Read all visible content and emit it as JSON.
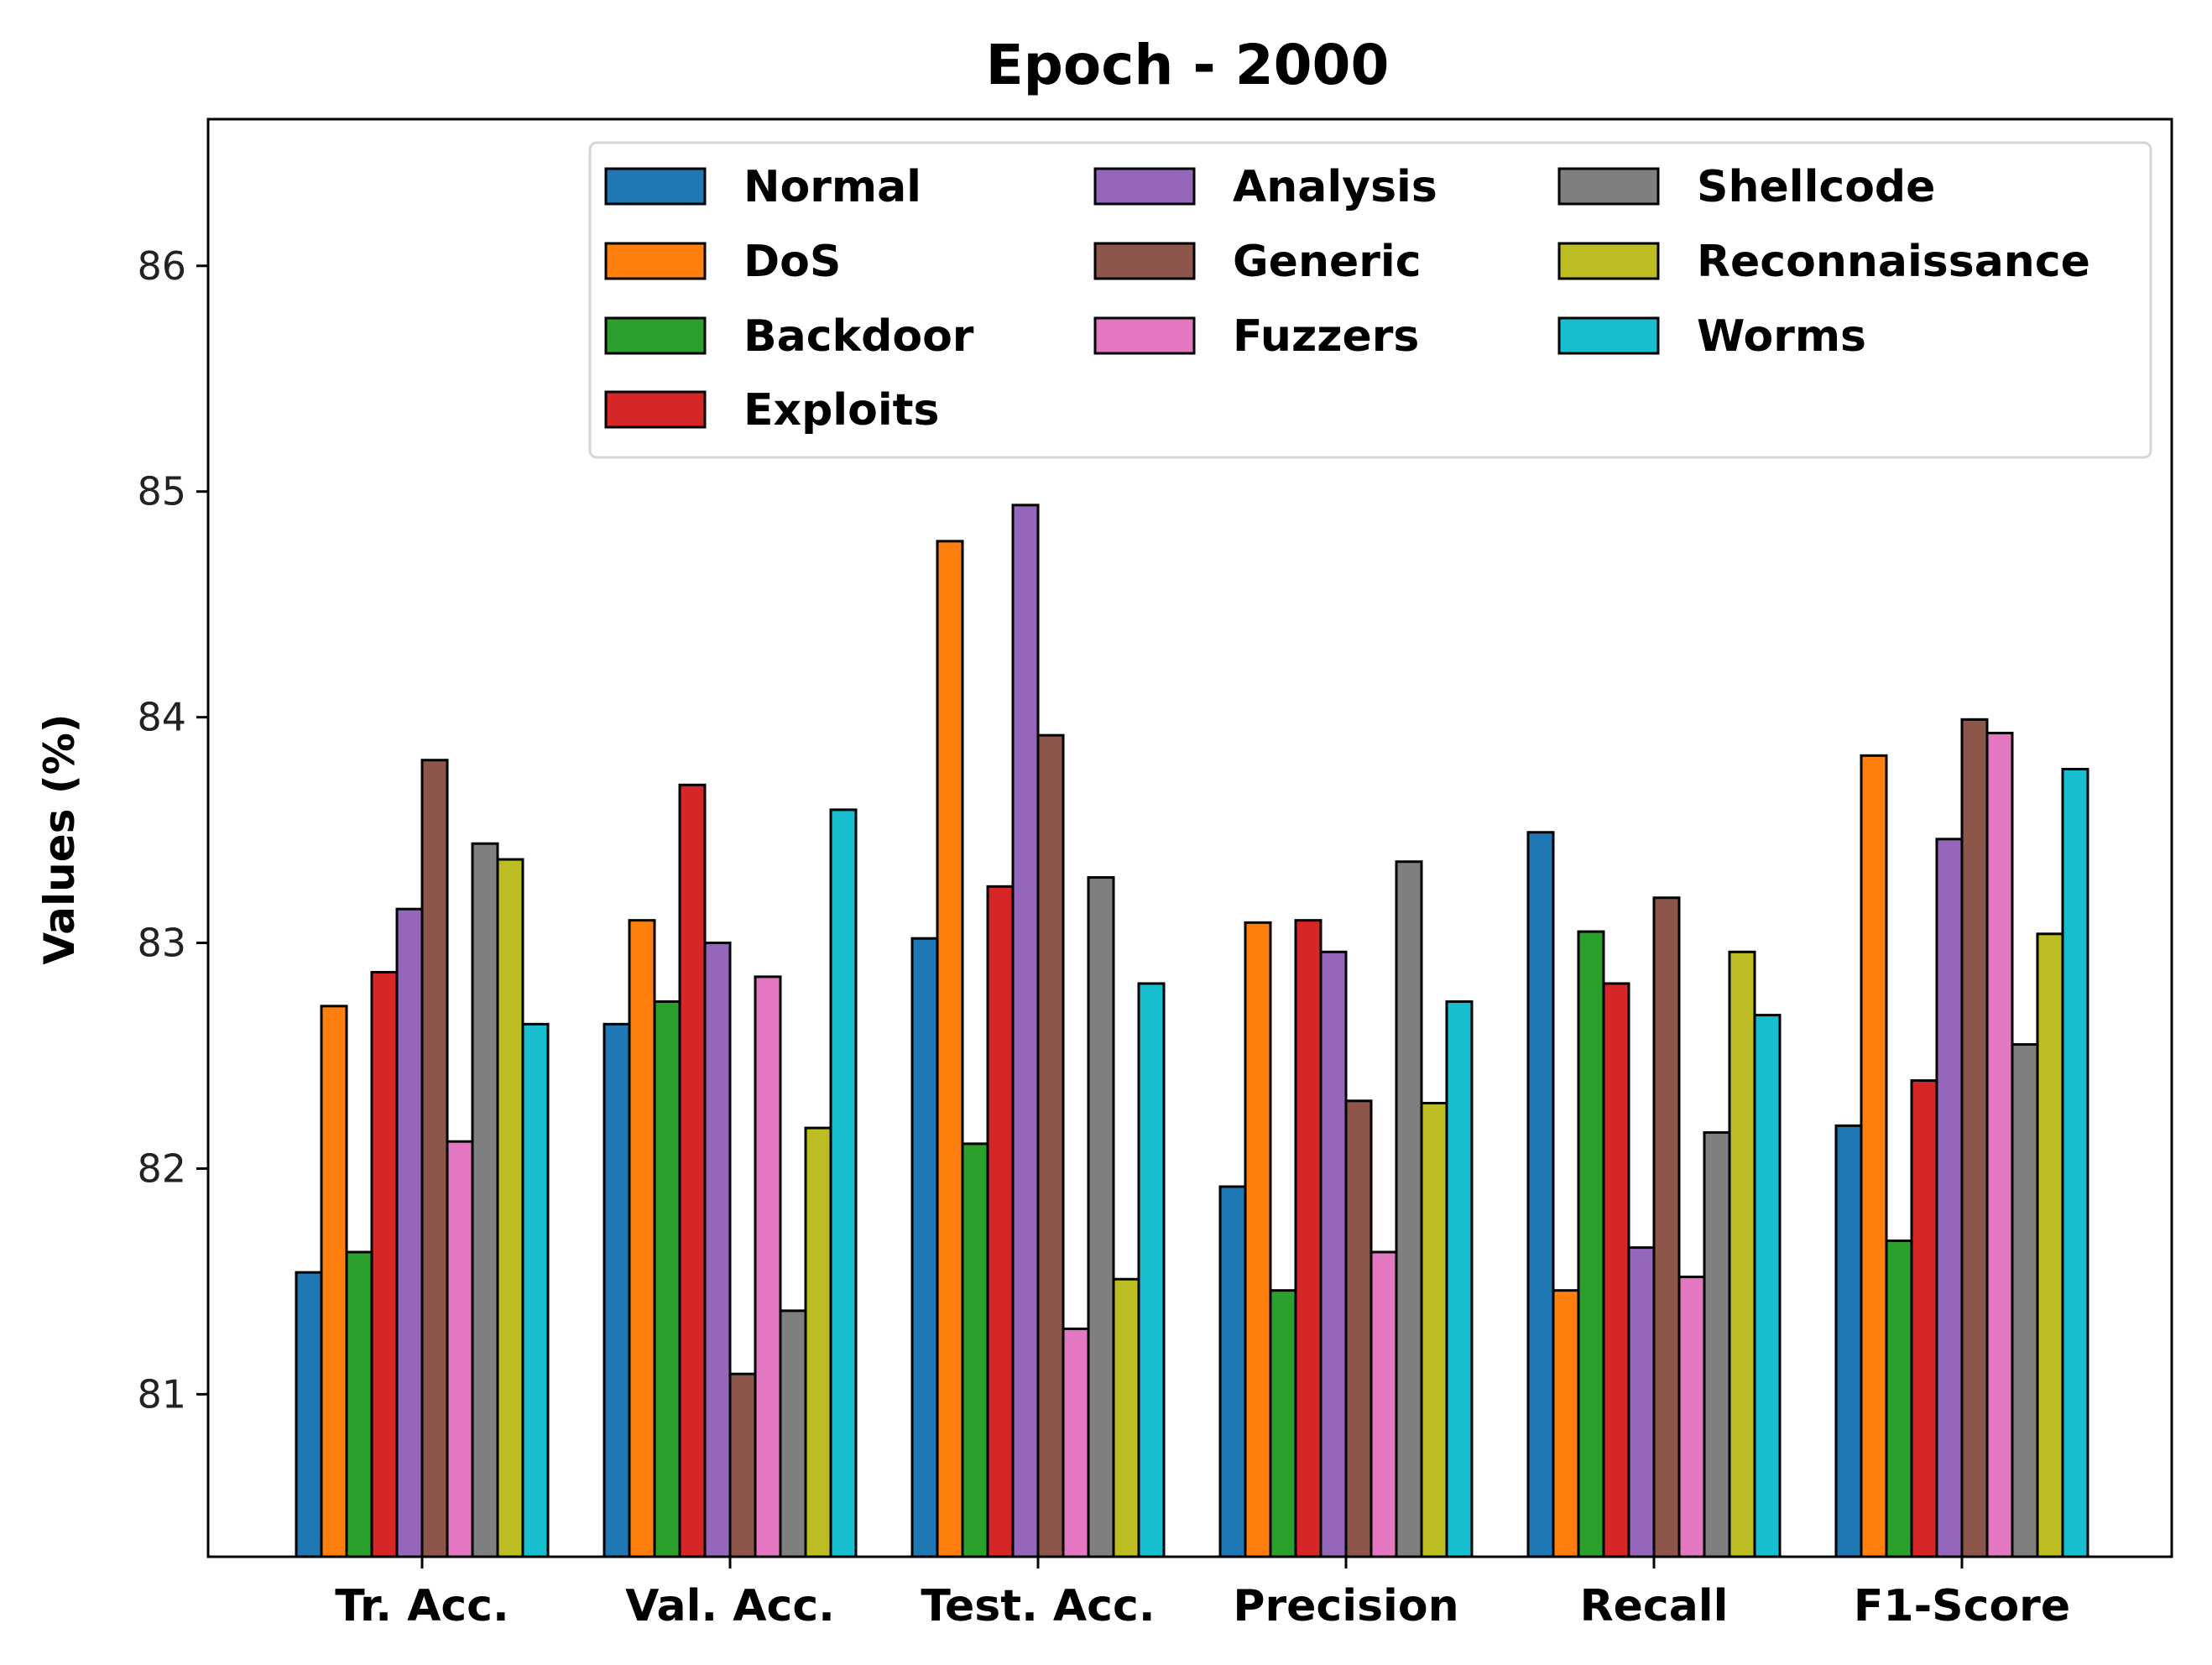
{
  "chart_data": {
    "type": "bar",
    "title": "Epoch - 2000",
    "xlabel": "",
    "ylabel": "Values (%)",
    "ylim": [
      80.28,
      86.65
    ],
    "yticks": [
      81,
      82,
      83,
      84,
      85,
      86
    ],
    "grid": false,
    "legend_position": "top-right",
    "categories": [
      "Tr. Acc.",
      "Val. Acc.",
      "Test. Acc.",
      "Precision",
      "Recall",
      "F1-Score"
    ],
    "series": [
      {
        "name": "Normal",
        "color": "#1f77b4",
        "values": [
          81.54,
          82.64,
          83.02,
          81.92,
          83.49,
          82.19
        ]
      },
      {
        "name": "DoS",
        "color": "#ff7f0e",
        "values": [
          82.72,
          83.1,
          84.78,
          83.09,
          81.46,
          83.83
        ]
      },
      {
        "name": "Backdoor",
        "color": "#2ca02c",
        "values": [
          81.63,
          82.74,
          82.11,
          81.46,
          83.05,
          81.68
        ]
      },
      {
        "name": "Exploits",
        "color": "#d62728",
        "values": [
          82.87,
          83.7,
          83.25,
          83.1,
          82.82,
          82.39
        ]
      },
      {
        "name": "Analysis",
        "color": "#9467bd",
        "values": [
          83.15,
          83.0,
          84.94,
          82.96,
          81.65,
          83.46
        ]
      },
      {
        "name": "Generic",
        "color": "#8c564b",
        "values": [
          83.81,
          81.09,
          83.92,
          82.3,
          83.2,
          83.99
        ]
      },
      {
        "name": "Fuzzers",
        "color": "#e377c2",
        "values": [
          82.12,
          82.85,
          81.29,
          81.63,
          81.52,
          83.93
        ]
      },
      {
        "name": "Shellcode",
        "color": "#7f7f7f",
        "values": [
          83.44,
          81.37,
          83.29,
          83.36,
          82.16,
          82.55
        ]
      },
      {
        "name": "Reconnaissance",
        "color": "#bcbd22",
        "values": [
          83.37,
          82.18,
          81.51,
          82.29,
          82.96,
          83.04
        ]
      },
      {
        "name": "Worms",
        "color": "#17becf",
        "values": [
          82.64,
          83.59,
          82.82,
          82.74,
          82.68,
          83.77
        ]
      }
    ]
  }
}
